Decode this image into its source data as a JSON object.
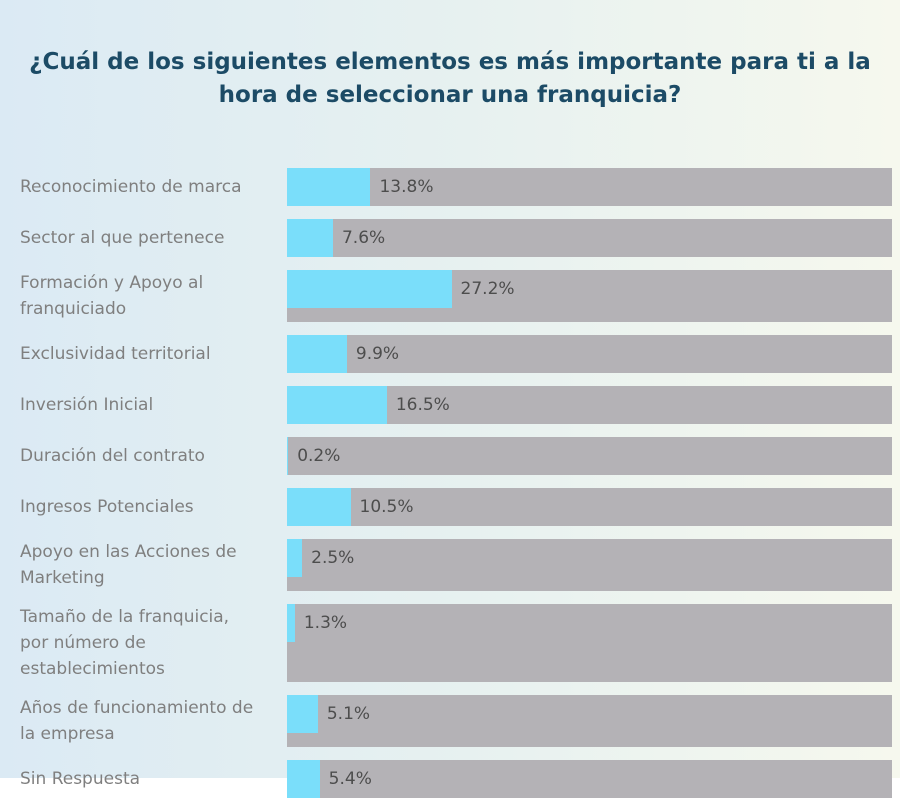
{
  "page": {
    "title_text": "¿Cuál de los siguientes elementos es más importante para ti a la\nhora de seleccionar una franquicia?"
  },
  "chart_data": {
    "type": "bar",
    "orientation": "horizontal",
    "title": "¿Cuál de los siguientes elementos es más importante para ti a la hora de seleccionar una franquicia?",
    "categories": [
      "Reconocimiento de marca",
      "Sector al que pertenece",
      "Formación y Apoyo al franquiciado",
      "Exclusividad territorial",
      "Inversión Inicial",
      "Duración del contrato",
      "Ingresos Potenciales",
      "Apoyo en las Acciones de Marketing",
      "Tamaño de la franquicia, por número de establecimientos",
      "Años de funcionamiento de la empresa",
      "Sin Respuesta"
    ],
    "category_display": [
      "Reconocimiento de marca",
      "Sector al que pertenece",
      "Formación y Apoyo al\nfranquiciado",
      "Exclusividad territorial",
      "Inversión Inicial",
      "Duración del contrato",
      "Ingresos Potenciales",
      "Apoyo en las Acciones de\nMarketing",
      "Tamaño de la franquicia,\npor número de\nestablecimientos",
      "Años de funcionamiento de\nla empresa",
      "Sin Respuesta"
    ],
    "values": [
      13.8,
      7.6,
      27.2,
      9.9,
      16.5,
      0.2,
      10.5,
      2.5,
      1.3,
      5.1,
      5.4
    ],
    "value_labels": [
      "13.8%",
      "7.6%",
      "27.2%",
      "9.9%",
      "16.5%",
      "0.2%",
      "10.5%",
      "2.5%",
      "1.3%",
      "5.1%",
      "5.4%"
    ],
    "xlim": [
      0,
      100
    ],
    "unit": "%",
    "xlabel": "",
    "ylabel": "",
    "legend": "none",
    "grid": false,
    "layout_note": "filled bar width equals percentage of full track width; value label printed inside gray track right after the fill"
  },
  "colors": {
    "bar_fill": "#7ADEFA",
    "bar_track": "#B4B2B6",
    "title_text": "#1C4B66",
    "category_text": "#7F7F7F",
    "value_text": "#4D4D4D",
    "background_left": "#DBEAF4",
    "background_right": "#F6F8EE",
    "footer_strip": "#FFFFFF"
  }
}
